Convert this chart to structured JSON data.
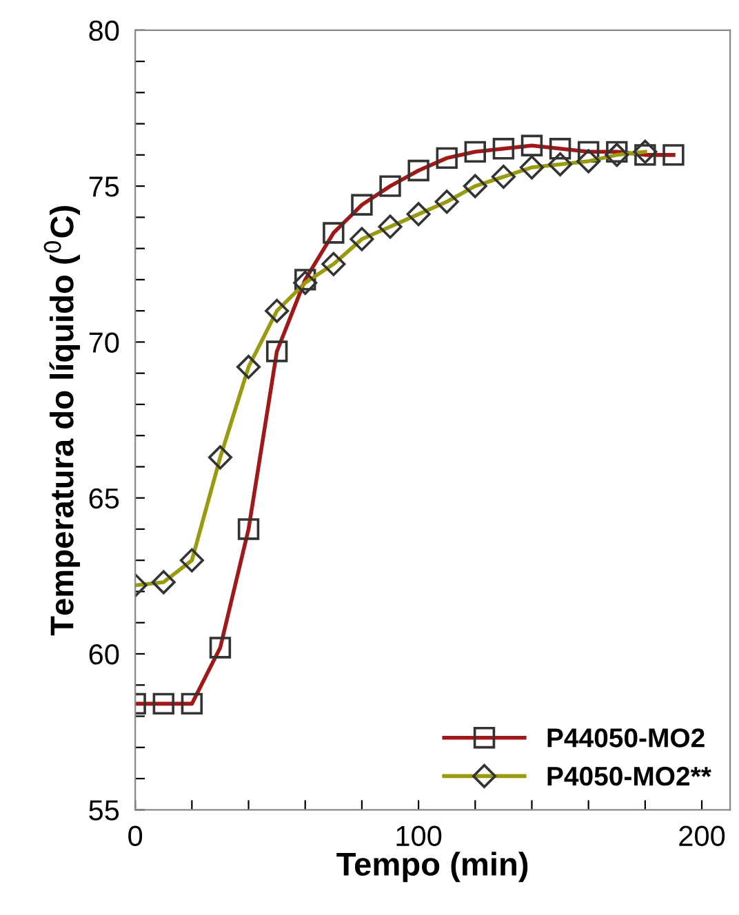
{
  "chart_data": {
    "type": "line",
    "xlabel": "Tempo (min)",
    "ylabel": "Temperatura do líquido ($^{0}$C)",
    "xlim": [
      0,
      210
    ],
    "ylim": [
      55,
      80
    ],
    "xticks": [
      0,
      {
        "value": 20,
        "label": null
      },
      {
        "value": 40,
        "label": null
      },
      {
        "value": 60,
        "label": null
      },
      {
        "value": 80,
        "label": null
      },
      100,
      {
        "value": 120,
        "label": null
      },
      {
        "value": 140,
        "label": null
      },
      {
        "value": 160,
        "label": null
      },
      {
        "value": 180,
        "label": null
      },
      200
    ],
    "yticks": [
      55,
      {
        "value": 56,
        "label": null
      },
      {
        "value": 57,
        "label": null
      },
      {
        "value": 58,
        "label": null
      },
      {
        "value": 59,
        "label": null
      },
      60,
      {
        "value": 61,
        "label": null
      },
      {
        "value": 62,
        "label": null
      },
      {
        "value": 63,
        "label": null
      },
      {
        "value": 64,
        "label": null
      },
      65,
      {
        "value": 66,
        "label": null
      },
      {
        "value": 67,
        "label": null
      },
      {
        "value": 68,
        "label": null
      },
      {
        "value": 69,
        "label": null
      },
      70,
      {
        "value": 71,
        "label": null
      },
      {
        "value": 72,
        "label": null
      },
      {
        "value": 73,
        "label": null
      },
      {
        "value": 74,
        "label": null
      },
      75,
      {
        "value": 76,
        "label": null
      },
      {
        "value": 77,
        "label": null
      },
      {
        "value": 78,
        "label": null
      },
      {
        "value": 79,
        "label": null
      },
      80
    ],
    "grid": false,
    "legend": "bottom right",
    "line_style": "solid",
    "series": [
      {
        "name": "P44050-MO2",
        "color": "#a01818",
        "marker": "square",
        "x": [
          0,
          10,
          20,
          30,
          40,
          50,
          60,
          70,
          80,
          90,
          100,
          110,
          120,
          130,
          140,
          150,
          160,
          170,
          180,
          190
        ],
        "values": [
          58.4,
          58.4,
          58.4,
          60.2,
          64.0,
          69.7,
          72.0,
          73.5,
          74.4,
          75.0,
          75.5,
          75.9,
          76.1,
          76.2,
          76.3,
          76.2,
          76.1,
          76.1,
          76.0,
          76.0
        ]
      },
      {
        "name": "P4050-MO2**",
        "color": "#9a9a10",
        "marker": "diamond",
        "x": [
          0,
          10,
          20,
          30,
          40,
          50,
          60,
          70,
          80,
          90,
          100,
          110,
          120,
          130,
          140,
          150,
          160,
          170,
          180
        ],
        "values": [
          62.2,
          62.3,
          63.0,
          66.3,
          69.2,
          71.0,
          71.9,
          72.5,
          73.3,
          73.7,
          74.1,
          74.5,
          75.0,
          75.3,
          75.6,
          75.7,
          75.8,
          76.0,
          76.1
        ]
      }
    ]
  }
}
